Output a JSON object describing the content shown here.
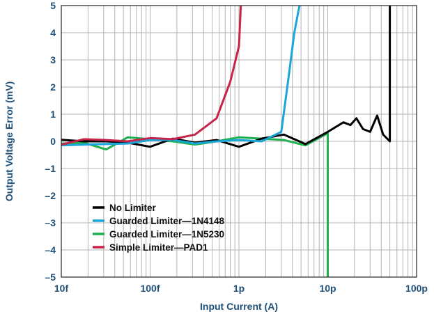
{
  "chart_data": {
    "type": "line",
    "xlabel": "Input Current (A)",
    "ylabel": "Output Voltage Error (mV)",
    "xscale": "log",
    "xlim": [
      1e-14,
      1e-10
    ],
    "ylim": [
      -5,
      5
    ],
    "grid": true,
    "legend_placement": "bottom-left",
    "x_ticks": [
      {
        "value": 1e-14,
        "label": "10f"
      },
      {
        "value": 1e-13,
        "label": "100f"
      },
      {
        "value": 1e-12,
        "label": "1p"
      },
      {
        "value": 1e-11,
        "label": "10p"
      },
      {
        "value": 1e-10,
        "label": "100p"
      }
    ],
    "y_ticks": [
      {
        "value": 5,
        "label": "5"
      },
      {
        "value": 4,
        "label": "4"
      },
      {
        "value": 3,
        "label": "3"
      },
      {
        "value": 2,
        "label": "2"
      },
      {
        "value": 1,
        "label": "1"
      },
      {
        "value": 0,
        "label": "0"
      },
      {
        "value": -1,
        "label": "–1"
      },
      {
        "value": -2,
        "label": "–2"
      },
      {
        "value": -3,
        "label": "–3"
      },
      {
        "value": -4,
        "label": "–4"
      },
      {
        "value": -5,
        "label": "–5"
      }
    ],
    "series": [
      {
        "name": "No Limiter",
        "color": "#000000",
        "points": [
          [
            1e-14,
            0.06
          ],
          [
            1.8e-14,
            0.0
          ],
          [
            3.2e-14,
            0.0
          ],
          [
            5.6e-14,
            -0.05
          ],
          [
            1e-13,
            -0.2
          ],
          [
            1.8e-13,
            0.1
          ],
          [
            3.2e-13,
            -0.05
          ],
          [
            5.6e-13,
            0.05
          ],
          [
            1e-12,
            -0.2
          ],
          [
            1.8e-12,
            0.1
          ],
          [
            3.2e-12,
            0.25
          ],
          [
            5.6e-12,
            -0.1
          ],
          [
            1e-11,
            0.35
          ],
          [
            1.5e-11,
            0.7
          ],
          [
            1.8e-11,
            0.6
          ],
          [
            2.1e-11,
            0.85
          ],
          [
            2.5e-11,
            0.45
          ],
          [
            3e-11,
            0.35
          ],
          [
            3.6e-11,
            0.95
          ],
          [
            4.2e-11,
            0.25
          ],
          [
            5e-11,
            0.0
          ],
          [
            5e-11,
            5
          ]
        ]
      },
      {
        "name": "Guarded Limiter—1N4148",
        "color": "#1aa6d6",
        "points": [
          [
            1e-14,
            -0.15
          ],
          [
            1.8e-14,
            -0.12
          ],
          [
            3.2e-14,
            -0.1
          ],
          [
            5.6e-14,
            -0.08
          ],
          [
            1e-13,
            0.05
          ],
          [
            1.8e-13,
            0.05
          ],
          [
            3.2e-13,
            -0.08
          ],
          [
            5.6e-13,
            0.0
          ],
          [
            1e-12,
            0.05
          ],
          [
            1.8e-12,
            0.0
          ],
          [
            3e-12,
            0.35
          ],
          [
            3.5e-12,
            2.0
          ],
          [
            4.2e-12,
            4.0
          ],
          [
            4.8e-12,
            5
          ]
        ]
      },
      {
        "name": "Guarded Limiter—1N5230",
        "color": "#1fb04f",
        "points": [
          [
            1e-14,
            -0.08
          ],
          [
            1.8e-14,
            -0.05
          ],
          [
            3.2e-14,
            -0.3
          ],
          [
            5.6e-14,
            0.15
          ],
          [
            1e-13,
            0.08
          ],
          [
            1.8e-13,
            0.0
          ],
          [
            3.2e-13,
            -0.12
          ],
          [
            5.6e-13,
            0.0
          ],
          [
            1e-12,
            0.15
          ],
          [
            1.8e-12,
            0.1
          ],
          [
            3.2e-12,
            0.05
          ],
          [
            5.6e-12,
            -0.15
          ],
          [
            1e-11,
            0.3
          ],
          [
            1e-11,
            -5
          ]
        ]
      },
      {
        "name": "Simple Limiter—PAD1",
        "color": "#c8234a",
        "points": [
          [
            1e-14,
            -0.12
          ],
          [
            1.8e-14,
            0.08
          ],
          [
            3.2e-14,
            0.05
          ],
          [
            5.6e-14,
            0.0
          ],
          [
            1e-13,
            0.12
          ],
          [
            1.8e-13,
            0.08
          ],
          [
            3.2e-13,
            0.25
          ],
          [
            5.6e-13,
            0.85
          ],
          [
            8e-13,
            2.2
          ],
          [
            1e-12,
            3.5
          ],
          [
            1.05e-12,
            5
          ]
        ]
      }
    ]
  }
}
